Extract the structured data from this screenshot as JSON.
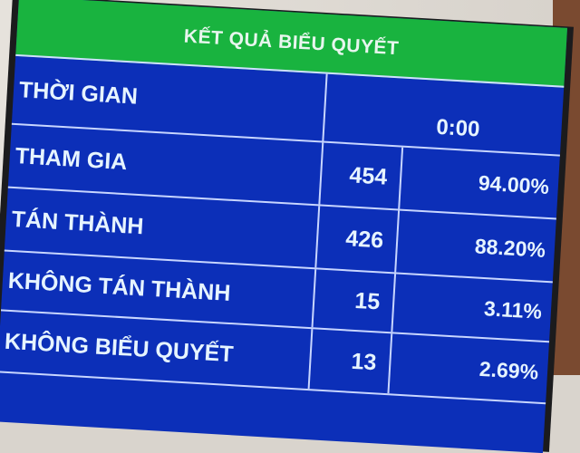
{
  "title": "KẾT QUẢ BIỂU QUYẾT",
  "time": {
    "label": "THỜI GIAN",
    "value": "0:00"
  },
  "rows": [
    {
      "label": "THAM GIA",
      "count": "454",
      "percent": "94.00%"
    },
    {
      "label": "TÁN THÀNH",
      "count": "426",
      "percent": "88.20%"
    },
    {
      "label": "KHÔNG TÁN THÀNH",
      "count": "15",
      "percent": "3.11%"
    },
    {
      "label": "KHÔNG BIỂU QUYẾT",
      "count": "13",
      "percent": "2.69%"
    }
  ],
  "colors": {
    "header": "#19b33f",
    "body": "#0c2fb8",
    "text": "#e6f4ff"
  }
}
